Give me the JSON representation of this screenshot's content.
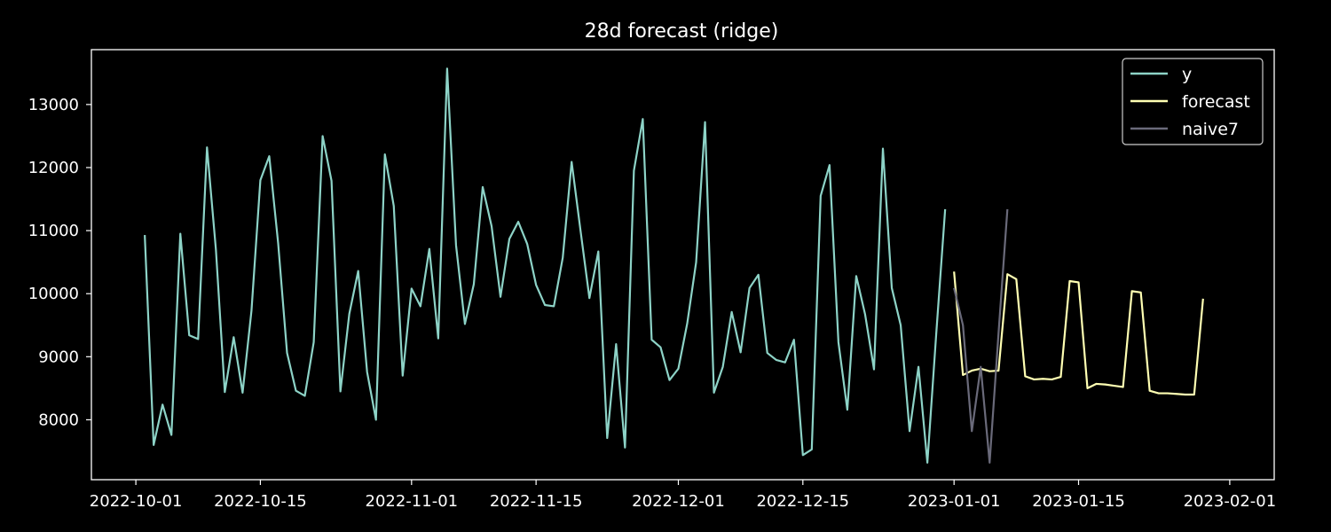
{
  "chart_data": {
    "type": "line",
    "title": "28d forecast (ridge)",
    "xlabel": "",
    "ylabel": "",
    "x_axis_type": "date",
    "xlim": [
      "2022-09-26",
      "2023-02-06"
    ],
    "ylim": [
      7050,
      13870
    ],
    "grid": false,
    "legend_position": "top-right",
    "x_ticks": [
      "2022-10-01",
      "2022-10-15",
      "2022-11-01",
      "2022-11-15",
      "2022-12-01",
      "2022-12-15",
      "2023-01-01",
      "2023-01-15",
      "2023-02-01"
    ],
    "y_ticks": [
      8000,
      9000,
      10000,
      11000,
      12000,
      13000
    ],
    "series": [
      {
        "name": "y",
        "color": "#8dd3c7",
        "start_date": "2022-10-02",
        "values": [
          10930,
          7600,
          8240,
          7760,
          10950,
          9340,
          9280,
          12320,
          10700,
          8440,
          9310,
          8430,
          9730,
          11800,
          12180,
          10800,
          9060,
          8460,
          8380,
          9230,
          12500,
          11790,
          8450,
          9680,
          10360,
          8760,
          8000,
          12210,
          11390,
          8700,
          10080,
          9800,
          10710,
          9290,
          13570,
          10770,
          9520,
          10150,
          11690,
          11070,
          9950,
          10870,
          11140,
          10790,
          10140,
          9820,
          9800,
          10570,
          12090,
          11000,
          9930,
          10670,
          7710,
          9200,
          7560,
          11950,
          12770,
          9270,
          9150,
          8630,
          8810,
          9530,
          10500,
          12720,
          8430,
          8840,
          9710,
          9070,
          10090,
          10300,
          9060,
          8950,
          8910,
          9270,
          7440,
          7530,
          11550,
          12040,
          9230,
          8160,
          10280,
          9670,
          8800,
          12300,
          10090,
          9500,
          7820,
          8840,
          7320,
          9370,
          11340
        ]
      },
      {
        "name": "forecast",
        "color": "#ffffb3",
        "start_date": "2023-01-01",
        "values": [
          10350,
          8710,
          8780,
          8810,
          8770,
          8780,
          10310,
          10230,
          8690,
          8640,
          8650,
          8640,
          8680,
          10200,
          10180,
          8500,
          8570,
          8560,
          8540,
          8520,
          10040,
          10020,
          8460,
          8420,
          8420,
          8410,
          8400,
          8400,
          9920
        ]
      },
      {
        "name": "naive7",
        "color": "#6a6a7a",
        "start_date": "2023-01-01",
        "values": [
          10090,
          9500,
          7820,
          8840,
          7320,
          9370,
          11340
        ]
      }
    ]
  }
}
